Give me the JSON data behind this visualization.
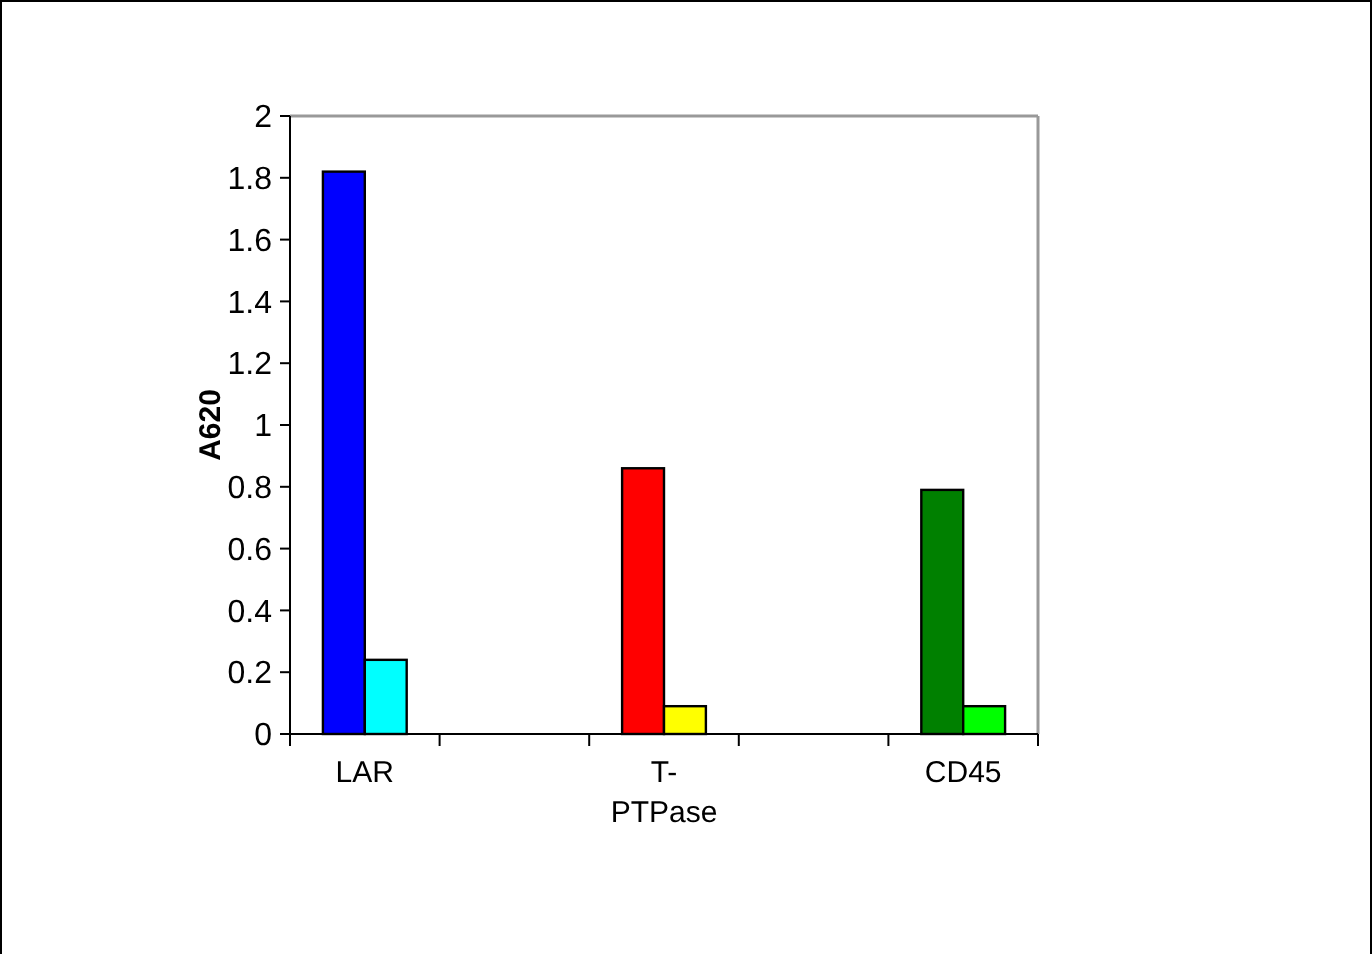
{
  "chart_data": {
    "type": "bar",
    "ylabel": "A620",
    "categories": [
      "LAR",
      null,
      "T-PTPase",
      null,
      "CD45"
    ],
    "series": [
      {
        "colors": [
          "#0000ff",
          null,
          "#ff0000",
          null,
          "#008000"
        ],
        "values": [
          1.82,
          null,
          0.86,
          null,
          0.79
        ]
      },
      {
        "colors": [
          "#00ffff",
          null,
          "#ffff00",
          null,
          "#00ff00"
        ],
        "values": [
          0.24,
          null,
          0.09,
          null,
          0.09
        ]
      }
    ],
    "ylim": [
      0,
      2
    ],
    "yticks": [
      0,
      0.2,
      0.4,
      0.6,
      0.8,
      1,
      1.2,
      1.4,
      1.6,
      1.8,
      2
    ]
  }
}
